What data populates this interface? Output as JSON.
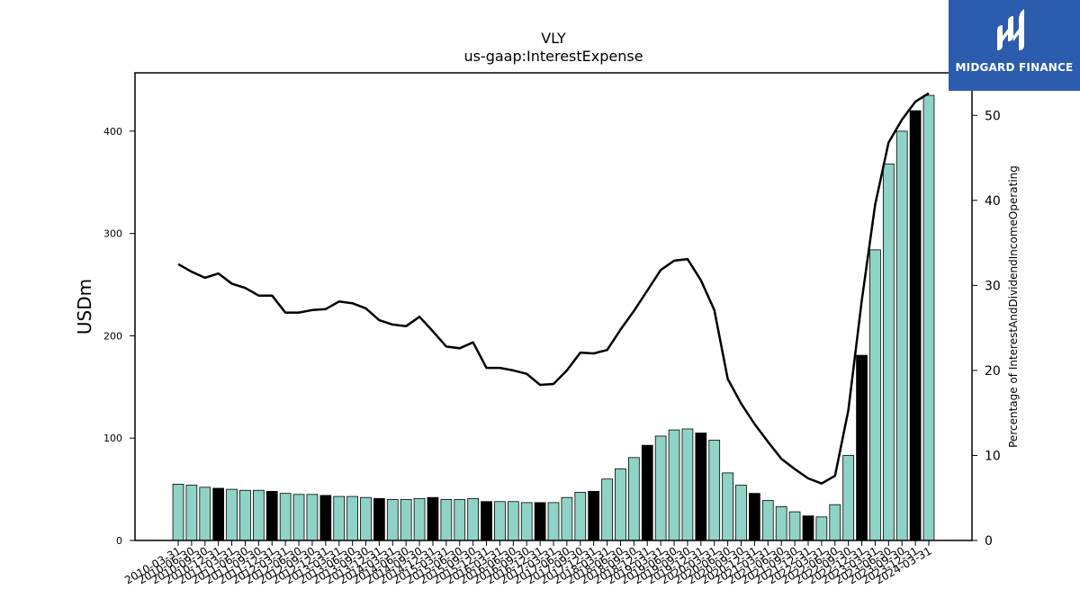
{
  "chart_data": {
    "type": "bar",
    "title": "VLY",
    "subtitle": "us-gaap:InterestExpense",
    "ylabel": "USDm",
    "y2label": "Percentage of InterestAndDividendIncomeOperating",
    "ylim": [
      0,
      457
    ],
    "y2lim": [
      0,
      55
    ],
    "yticks": [
      0,
      100,
      200,
      300,
      400
    ],
    "y2ticks": [
      0,
      10,
      20,
      30,
      40,
      50
    ],
    "grid": false,
    "colors": {
      "bar": "#8fd3c6",
      "bar_highlight": "#000000",
      "line": "#000000"
    },
    "categories": [
      "2010-03-31",
      "2010-06-30",
      "2010-09-30",
      "2010-12-31",
      "2011-03-31",
      "2011-06-30",
      "2011-09-30",
      "2011-12-31",
      "2012-03-31",
      "2012-06-30",
      "2012-09-30",
      "2012-12-31",
      "2013-03-31",
      "2013-06-30",
      "2013-09-30",
      "2013-12-31",
      "2014-03-31",
      "2014-06-30",
      "2014-09-30",
      "2014-12-31",
      "2015-03-31",
      "2015-06-30",
      "2015-09-30",
      "2015-12-31",
      "2016-03-31",
      "2016-06-30",
      "2016-09-30",
      "2016-12-31",
      "2017-03-31",
      "2017-06-30",
      "2017-09-30",
      "2017-12-31",
      "2018-03-31",
      "2018-06-30",
      "2018-09-30",
      "2018-12-31",
      "2019-03-31",
      "2019-06-30",
      "2019-09-30",
      "2019-12-31",
      "2020-03-31",
      "2020-06-30",
      "2020-09-30",
      "2020-12-31",
      "2021-03-31",
      "2021-06-30",
      "2021-09-30",
      "2021-12-31",
      "2022-03-31",
      "2022-06-30",
      "2022-09-30",
      "2022-12-31",
      "2023-03-31",
      "2023-06-30",
      "2023-09-30",
      "2023-12-31",
      "2024-03-31"
    ],
    "series": [
      {
        "axis": "left",
        "kind": "bar",
        "values": [
          55,
          54,
          52,
          51,
          50,
          49,
          49,
          48,
          46,
          45,
          45,
          44,
          43,
          43,
          42,
          41,
          40,
          40,
          41,
          42,
          40,
          40,
          41,
          38,
          38,
          38,
          37,
          37,
          37,
          42,
          47,
          48,
          60,
          70,
          81,
          93,
          102,
          108,
          109,
          105,
          98,
          66,
          54,
          46,
          39,
          33,
          28,
          24,
          23,
          35,
          83,
          181,
          284,
          368,
          400,
          420,
          435
        ],
        "highlight": [
          false,
          false,
          false,
          true,
          false,
          false,
          false,
          true,
          false,
          false,
          false,
          true,
          false,
          false,
          false,
          true,
          false,
          false,
          false,
          true,
          false,
          false,
          false,
          true,
          false,
          false,
          false,
          true,
          false,
          false,
          false,
          true,
          false,
          false,
          false,
          true,
          false,
          false,
          false,
          true,
          false,
          false,
          false,
          true,
          false,
          false,
          false,
          true,
          false,
          false,
          false,
          true,
          false,
          false,
          false,
          true,
          false
        ]
      },
      {
        "axis": "right",
        "kind": "line",
        "values": [
          32.5,
          31.6,
          30.9,
          31.4,
          30.2,
          29.7,
          28.8,
          28.8,
          26.8,
          26.8,
          27.1,
          27.2,
          28.1,
          27.9,
          27.3,
          25.9,
          25.4,
          25.2,
          26.3,
          24.6,
          22.8,
          22.6,
          23.3,
          20.3,
          20.3,
          20.0,
          19.6,
          18.3,
          18.4,
          20.0,
          22.1,
          22.0,
          22.4,
          24.8,
          27.0,
          29.4,
          31.8,
          32.9,
          33.1,
          30.6,
          27.1,
          19.0,
          16.1,
          13.7,
          11.6,
          9.6,
          8.4,
          7.3,
          6.7,
          7.6,
          15.3,
          28.2,
          39.5,
          46.8,
          49.5,
          51.6,
          52.6
        ]
      }
    ]
  },
  "logo": {
    "text": "MIDGARD FINANCE"
  }
}
